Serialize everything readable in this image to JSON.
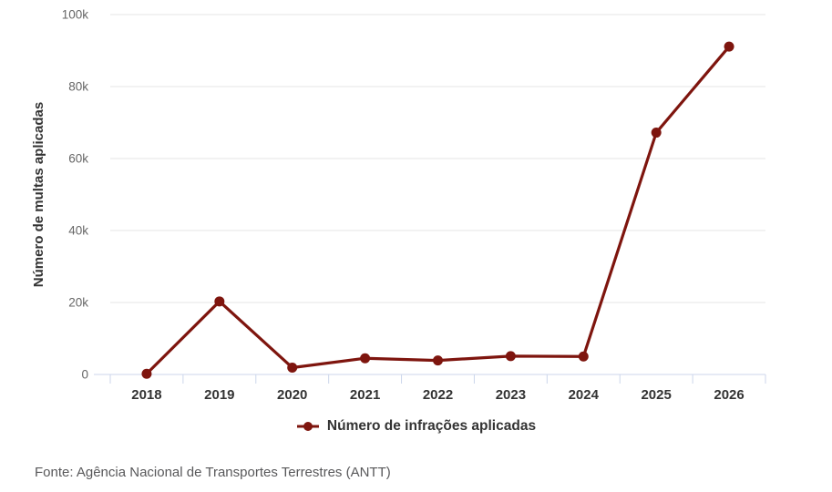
{
  "chart": {
    "legend_label": "Número de infrações aplicadas",
    "footer_source": "Fonte: Agência Nacional de Transportes Terrestres (ANTT)"
  },
  "chart_data": {
    "type": "line",
    "title": "",
    "categories": [
      "2018",
      "2019",
      "2020",
      "2021",
      "2022",
      "2023",
      "2024",
      "2025",
      "2026"
    ],
    "series": [
      {
        "name": "Número de infrações aplicadas",
        "values": [
          200,
          20300,
          1900,
          4500,
          3900,
          5100,
          5000,
          67200,
          91100
        ]
      }
    ],
    "xlabel": "",
    "ylabel": "Número de multas aplicadas",
    "ylim": [
      0,
      100000
    ],
    "yticks": [
      0,
      20000,
      40000,
      60000,
      80000,
      100000
    ],
    "ytick_labels": [
      "0",
      "20k",
      "40k",
      "60k",
      "80k",
      "100k"
    ],
    "grid": "horizontal-only",
    "legend_position": "bottom-center",
    "marker": "filled-circle",
    "colors": {
      "series": "#7e150e",
      "axis_line": "#ccd6eb",
      "gridline": "#e6e6e6",
      "ytick_label": "#666666",
      "xtick_label": "#333333",
      "axis_title": "#333333",
      "legend_text": "#333333",
      "footer_text": "#58585a",
      "background": "#ffffff"
    }
  }
}
